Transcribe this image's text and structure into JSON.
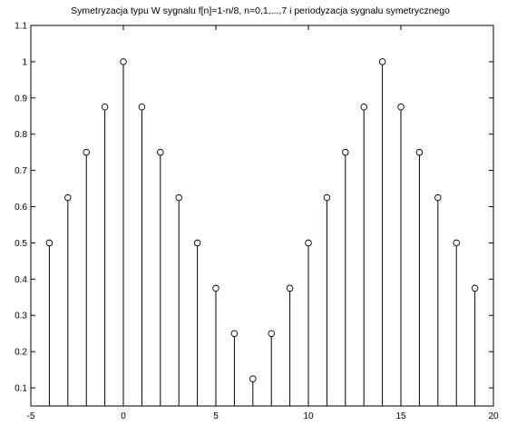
{
  "chart_data": {
    "type": "stem",
    "title": "Symetryzacja typu W sygnalu f[n]=1-n/8, n=0,1,...,7 i periodyzacja sygnalu symetrycznego",
    "xlabel": "",
    "ylabel": "",
    "xlim": [
      -5,
      20
    ],
    "ylim": [
      0.05,
      1.1
    ],
    "xticks": [
      -5,
      0,
      5,
      10,
      15,
      20
    ],
    "yticks": [
      0.1,
      0.2,
      0.3,
      0.4,
      0.5,
      0.6,
      0.7,
      0.8,
      0.9,
      1,
      1.1
    ],
    "grid": false,
    "x": [
      -4,
      -3,
      -2,
      -1,
      0,
      1,
      2,
      3,
      4,
      5,
      6,
      7,
      8,
      9,
      10,
      11,
      12,
      13,
      14,
      15,
      16,
      17,
      18,
      19
    ],
    "values": [
      0.5,
      0.625,
      0.75,
      0.875,
      1,
      0.875,
      0.75,
      0.625,
      0.5,
      0.375,
      0.25,
      0.125,
      0.25,
      0.375,
      0.5,
      0.625,
      0.75,
      0.875,
      1,
      0.875,
      0.75,
      0.625,
      0.5,
      0.375
    ],
    "colors": {
      "stem": "#000000",
      "marker": "#000000",
      "axes": "#000000",
      "background": "#ffffff"
    }
  }
}
